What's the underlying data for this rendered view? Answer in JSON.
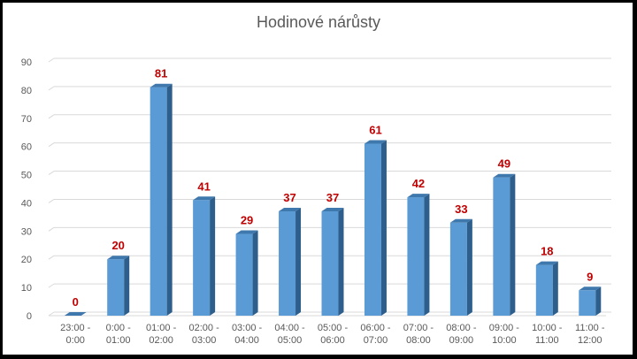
{
  "chart_data": {
    "type": "bar",
    "title": "Hodinové nárůsty",
    "xlabel": "",
    "ylabel": "",
    "ylim": [
      0,
      90
    ],
    "yticks": [
      0,
      10,
      20,
      30,
      40,
      50,
      60,
      70,
      80,
      90
    ],
    "grid": true,
    "categories": [
      [
        "23:00 -",
        "0:00"
      ],
      [
        "0:00 -",
        "01:00"
      ],
      [
        "01:00 -",
        "02:00"
      ],
      [
        "02:00 -",
        "03:00"
      ],
      [
        "03:00 -",
        "04:00"
      ],
      [
        "04:00 -",
        "05:00"
      ],
      [
        "05:00 -",
        "06:00"
      ],
      [
        "06:00 -",
        "07:00"
      ],
      [
        "07:00 -",
        "08:00"
      ],
      [
        "08:00 -",
        "09:00"
      ],
      [
        "09:00 -",
        "10:00"
      ],
      [
        "10:00 -",
        "11:00"
      ],
      [
        "11:00 -",
        "12:00"
      ]
    ],
    "values": [
      0,
      20,
      81,
      41,
      29,
      37,
      37,
      61,
      42,
      33,
      49,
      18,
      9
    ],
    "colors": {
      "bar_front": "#5b9bd5",
      "bar_side": "#2e5f8c",
      "bar_top": "#3f78ad",
      "data_label": "#c00000",
      "grid": "#d9d9d9"
    }
  }
}
